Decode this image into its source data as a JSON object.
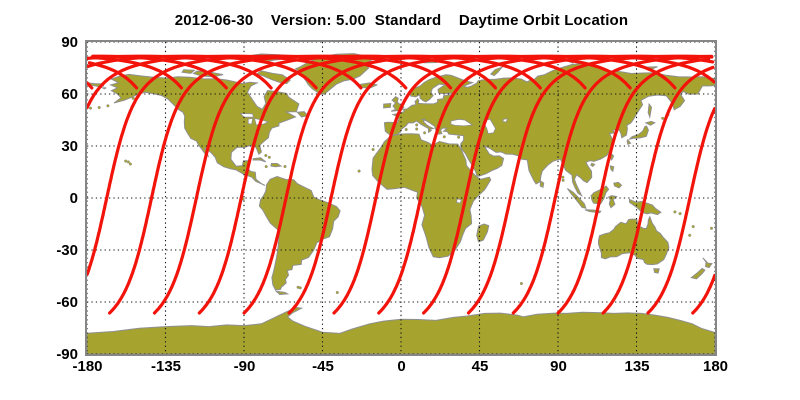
{
  "title": "2012-06-30    Version: 5.00  Standard    Daytime Orbit Location",
  "colors": {
    "background": "#ffffff",
    "land": "#a6a42f",
    "land_outline": "#8f8f8f",
    "grid": "#141414",
    "frame": "#868686",
    "track": "#f2130a",
    "text": "#000000"
  },
  "chart_data": {
    "type": "line",
    "subtype": "satellite-ground-tracks-on-equirectangular-world-map",
    "title": "2012-06-30    Version: 5.00  Standard    Daytime Orbit Location",
    "xlabel": "",
    "ylabel": "",
    "x_axis": {
      "range": [
        -180,
        180
      ],
      "ticks": [
        -180,
        -135,
        -90,
        -45,
        0,
        45,
        90,
        135,
        180
      ]
    },
    "y_axis": {
      "range": [
        -90,
        90
      ],
      "ticks": [
        90,
        60,
        30,
        0,
        -30,
        -60,
        -90
      ]
    },
    "grid": "dotted",
    "legend": "none",
    "basemap": "world-coastlines",
    "orbit_tracks": {
      "description": "14 red daytime orbit ground-track segments; each runs from the north daylight cutoff over the polar maximum, descends southwest across the equator and ends at the southern terminator; overlapping peaks form a solid red band near 80N",
      "inclination_deg": 98.2,
      "max_latitude_deg": 81.8,
      "north_daylight_cutoff_deg": 63.5,
      "south_daylight_cutoff_deg": -66.5,
      "lon_shift_per_orbit_deg": 25.714,
      "track_stroke_px": 3.2,
      "equator_crossing_lons_deg": [
        -143,
        -117.3,
        -91.6,
        -65.9,
        -40.1,
        -14.4,
        11.3,
        37,
        62.7,
        88.4,
        114.1,
        139.9,
        165.6,
        -168.7
      ]
    }
  }
}
